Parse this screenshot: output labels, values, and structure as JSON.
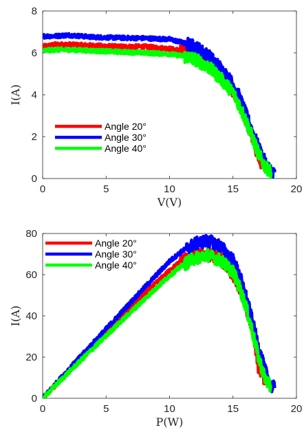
{
  "chart_data": [
    {
      "type": "line",
      "xlabel": "V(V)",
      "ylabel": "I(A)",
      "xlim": [
        0,
        20
      ],
      "ylim": [
        0,
        8
      ],
      "xticks": [
        "0",
        "5",
        "10",
        "15",
        "20"
      ],
      "yticks": [
        "0",
        "2",
        "4",
        "6",
        "8"
      ],
      "grid": false,
      "legend_position": "bottom-left",
      "colors": [
        "#ff0000",
        "#0000ff",
        "#00ff00"
      ],
      "series": [
        {
          "name": "Angle 20°",
          "x": [
            0,
            1,
            2,
            4,
            6,
            8,
            10,
            11,
            12,
            13,
            14,
            15,
            15.5,
            16,
            16.5,
            17,
            17.5
          ],
          "y": [
            6.3,
            6.4,
            6.4,
            6.35,
            6.3,
            6.3,
            6.2,
            6.1,
            5.9,
            5.6,
            5.0,
            4.2,
            3.6,
            2.8,
            2.0,
            1.0,
            0.5
          ]
        },
        {
          "name": "Angle 30°",
          "x": [
            0,
            1,
            2,
            4,
            6,
            8,
            10,
            11,
            12,
            13,
            14,
            15,
            15.5,
            16,
            16.5,
            17,
            17.5,
            18,
            18.3
          ],
          "y": [
            6.8,
            6.8,
            6.85,
            6.75,
            6.72,
            6.7,
            6.65,
            6.5,
            6.3,
            5.9,
            5.3,
            4.5,
            3.9,
            3.1,
            2.3,
            1.5,
            0.8,
            0.35,
            0.3
          ]
        },
        {
          "name": "Angle 40°",
          "x": [
            0,
            1,
            2,
            4,
            6,
            8,
            10,
            11,
            12,
            13,
            14,
            15,
            15.5,
            16,
            16.5,
            17,
            17.5,
            18
          ],
          "y": [
            6.1,
            6.15,
            6.15,
            6.1,
            6.05,
            6.0,
            5.95,
            5.85,
            5.7,
            5.35,
            4.8,
            4.1,
            3.5,
            2.8,
            2.0,
            1.2,
            0.6,
            0.3
          ]
        }
      ]
    },
    {
      "type": "line",
      "xlabel": "P(W)",
      "ylabel": "I(A)",
      "xlim": [
        0,
        20
      ],
      "ylim": [
        0,
        80
      ],
      "xticks": [
        "0",
        "5",
        "10",
        "15",
        "20"
      ],
      "yticks": [
        "0",
        "20",
        "40",
        "60",
        "80"
      ],
      "grid": false,
      "legend_position": "top-left",
      "colors": [
        "#ff0000",
        "#0000ff",
        "#00ff00"
      ],
      "series": [
        {
          "name": "Angle 20°",
          "x": [
            0,
            2,
            4,
            6,
            8,
            10,
            11,
            12,
            13,
            14,
            15,
            15.5,
            16,
            16.5,
            17,
            17.5
          ],
          "y": [
            0,
            12.7,
            25.5,
            38,
            50.5,
            62,
            67,
            69.5,
            70,
            68,
            60,
            54,
            45,
            34,
            15,
            9
          ]
        },
        {
          "name": "Angle 30°",
          "x": [
            0,
            2,
            4,
            6,
            8,
            10,
            11,
            12,
            13,
            14,
            15,
            15.5,
            16,
            16.5,
            17,
            17.5,
            18,
            18.3
          ],
          "y": [
            0,
            13.7,
            27,
            40.3,
            53.6,
            66.5,
            71.5,
            75,
            76.5,
            74,
            67,
            60,
            50,
            38,
            25,
            14,
            6,
            5
          ]
        },
        {
          "name": "Angle 40°",
          "x": [
            0,
            2,
            4,
            6,
            8,
            10,
            11,
            12,
            13,
            14,
            15,
            15.5,
            16,
            16.5,
            17,
            17.5,
            18
          ],
          "y": [
            0,
            12.3,
            24.4,
            36.3,
            48,
            59.5,
            64.5,
            68,
            69.5,
            67,
            61.5,
            54,
            45,
            33,
            20,
            10,
            5
          ]
        }
      ]
    }
  ]
}
